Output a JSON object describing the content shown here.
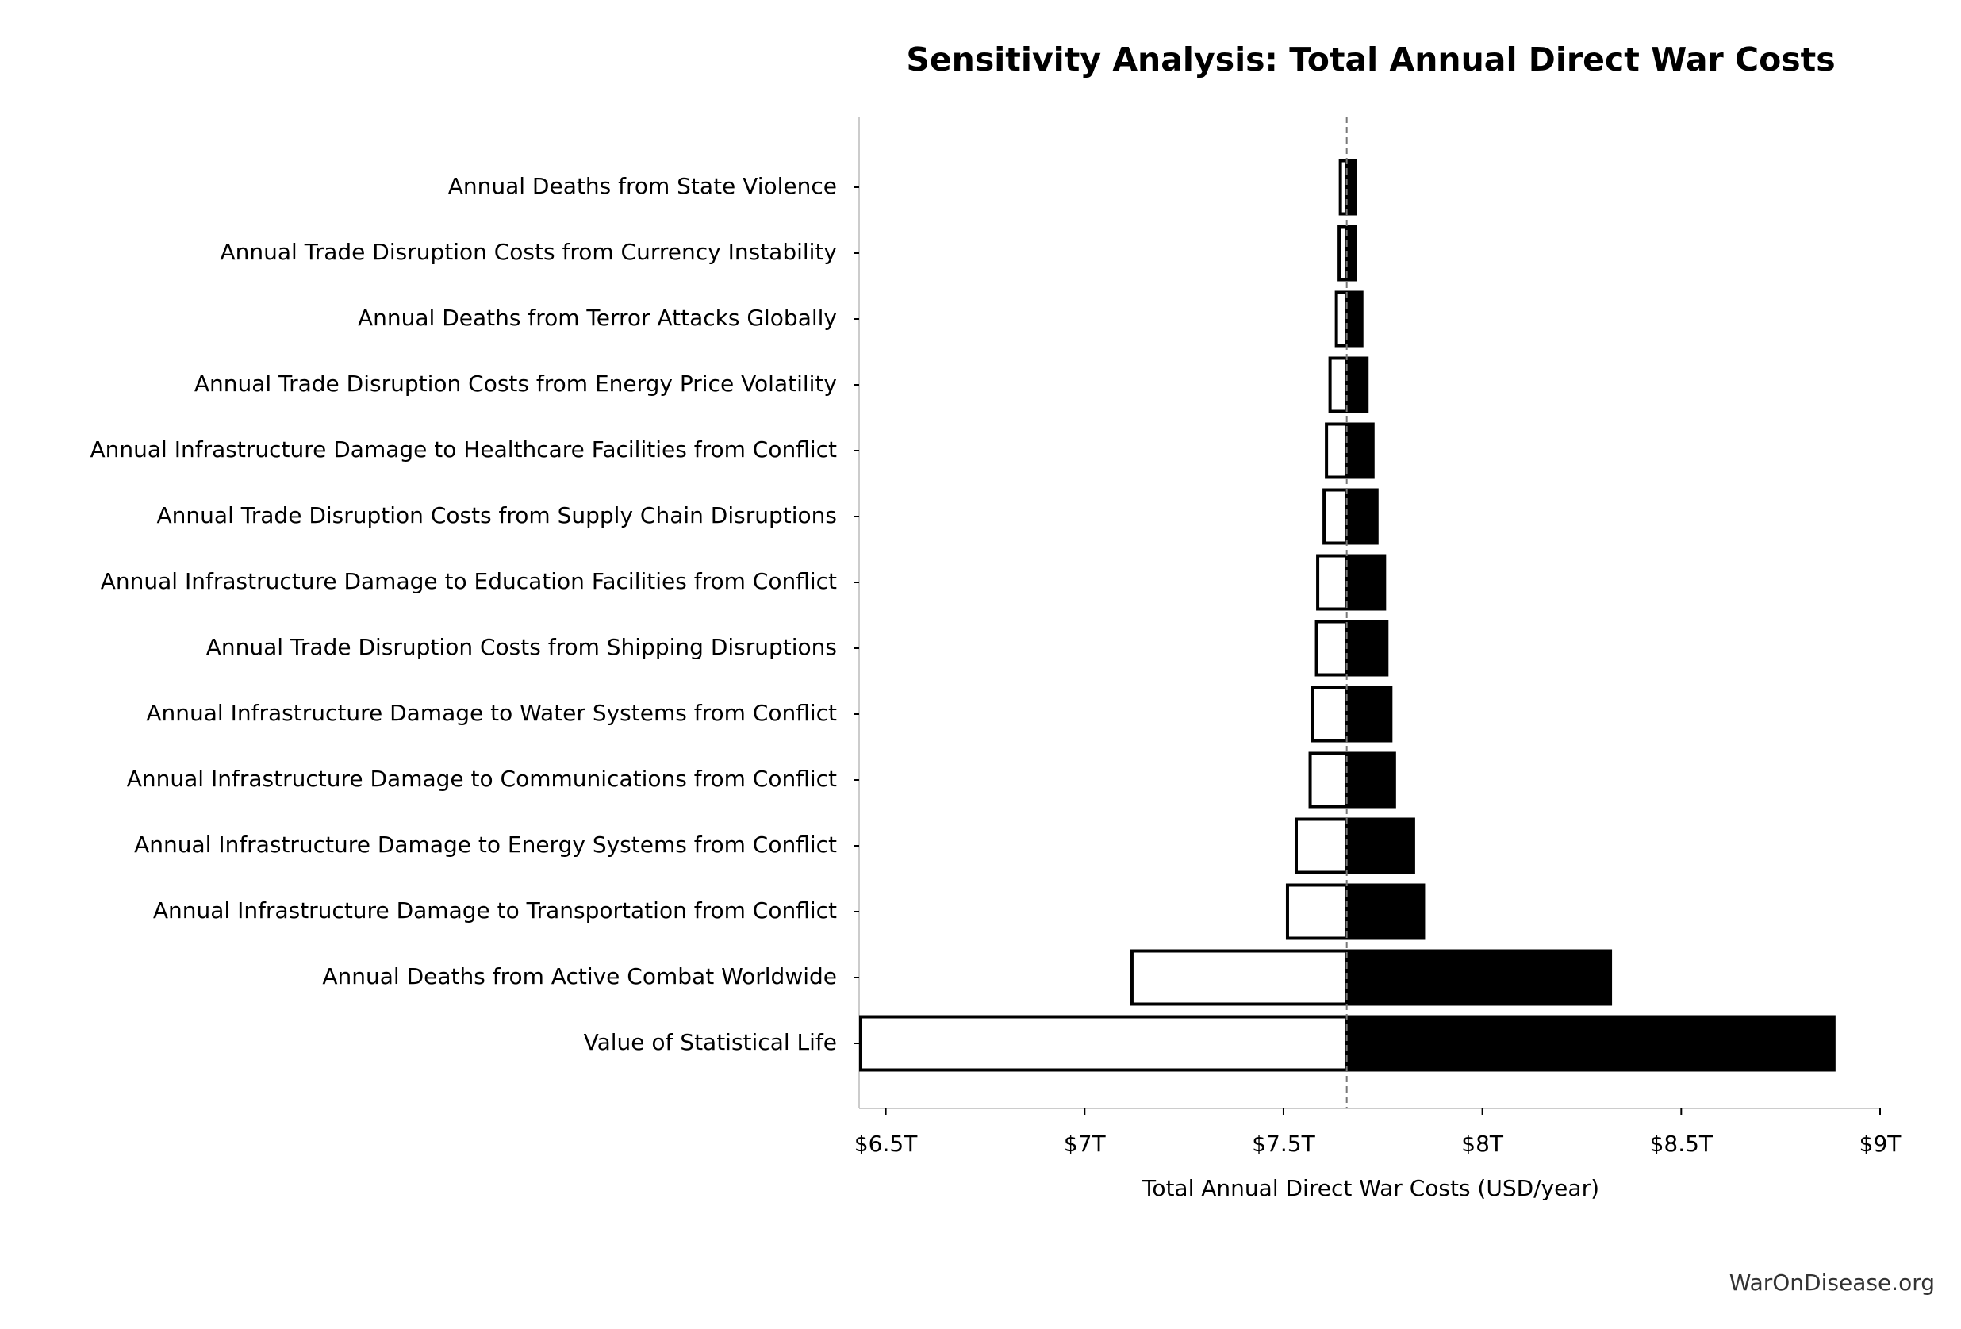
{
  "chart_data": {
    "type": "tornado",
    "title": "Sensitivity Analysis: Total Annual Direct War Costs",
    "xlabel": "Total Annual Direct War Costs (USD/year)",
    "source": "WarOnDisease.org",
    "categories": [
      "Annual Deaths from State Violence",
      "Annual Trade Disruption Costs from Currency Instability",
      "Annual Deaths from Terror Attacks Globally",
      "Annual Trade Disruption Costs from Energy Price Volatility",
      "Annual Infrastructure Damage to Healthcare Facilities from Conflict",
      "Annual Trade Disruption Costs from Supply Chain Disruptions",
      "Annual Infrastructure Damage to Education Facilities from Conflict",
      "Annual Trade Disruption Costs from Shipping Disruptions",
      "Annual Infrastructure Damage to Water Systems from Conflict",
      "Annual Infrastructure Damage to Communications from Conflict",
      "Annual Infrastructure Damage to Energy Systems from Conflict",
      "Annual Infrastructure Damage to Transportation from Conflict",
      "Annual Deaths from Active Combat Worldwide",
      "Value of Statistical Life"
    ],
    "baseline": 7659000000000,
    "series": [
      {
        "color": "#ffffff",
        "values": [
          7643000000000,
          7640000000000,
          7633000000000,
          7617000000000,
          7608000000000,
          7602000000000,
          7586000000000,
          7583000000000,
          7573000000000,
          7567000000000,
          7532000000000,
          7510000000000,
          7119000000000,
          6437000000000
        ]
      },
      {
        "color": "#000000",
        "values": [
          7681000000000,
          7681000000000,
          7697000000000,
          7710000000000,
          7725000000000,
          7735000000000,
          7754000000000,
          7760000000000,
          7770000000000,
          7779000000000,
          7827000000000,
          7852000000000,
          8322000000000,
          8884000000000
        ]
      }
    ],
    "xlim": [
      6433000000000,
      9000000000000
    ],
    "xticks": [
      {
        "value": 6500000000000,
        "label": "$6.5T"
      },
      {
        "value": 7000000000000,
        "label": "$7T"
      },
      {
        "value": 7500000000000,
        "label": "$7.5T"
      },
      {
        "value": 8000000000000,
        "label": "$8T"
      },
      {
        "value": 8500000000000,
        "label": "$8.5T"
      },
      {
        "value": 9000000000000,
        "label": "$9T"
      }
    ],
    "grid": false
  }
}
